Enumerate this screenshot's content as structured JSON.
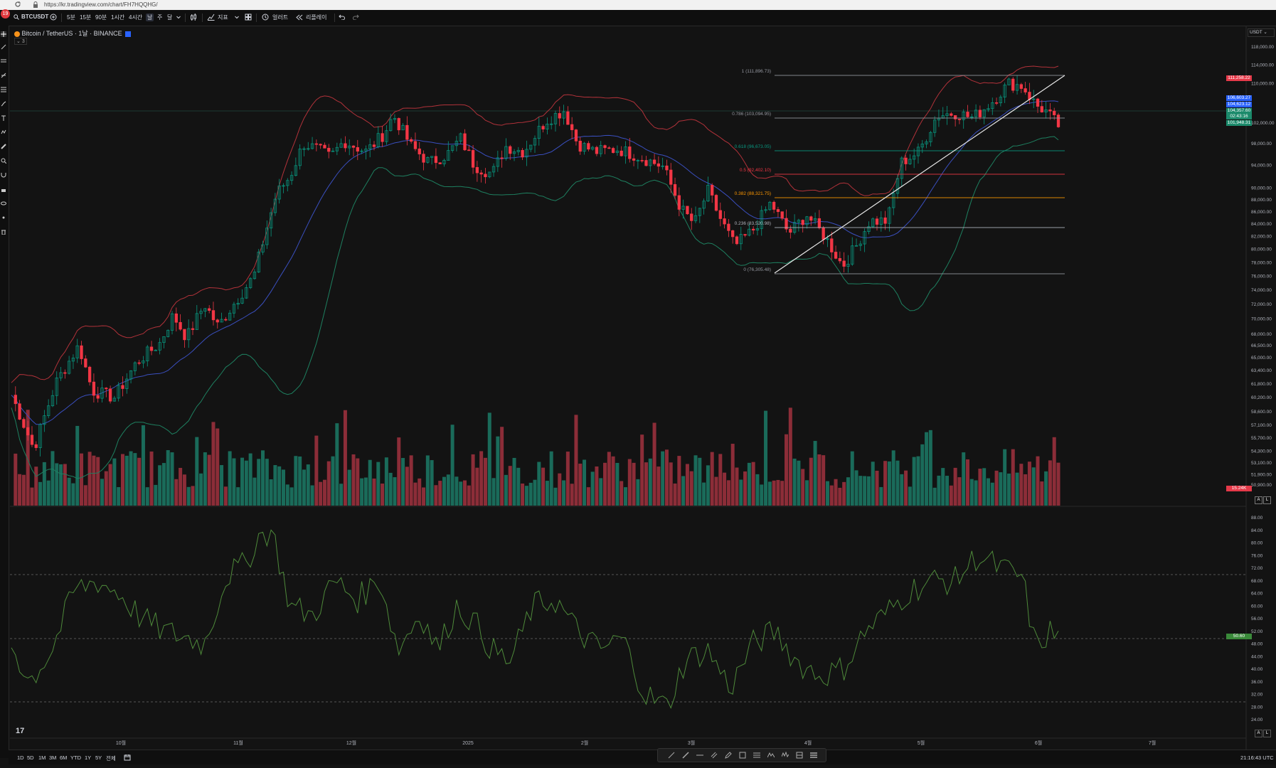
{
  "browser": {
    "url": "https://kr.tradingview.com/chart/FH7HQQHG/",
    "badge": "19"
  },
  "toolbar": {
    "symbol": "BTCUSDT",
    "intervals": [
      "5분",
      "15분",
      "90분",
      "1시간",
      "4시간",
      "날",
      "주",
      "달"
    ],
    "active_interval": "날",
    "indicators_label": "지표",
    "alert_label": "얼러트",
    "replay_label": "리플레이"
  },
  "legend": {
    "title": "Bitcoin / TetherUS · 1날 · BINANCE",
    "collapsed_count": "3"
  },
  "price_axis": {
    "currency": "USDT",
    "ticks": [
      "118,000.00",
      "114,000.00",
      "110,000.00",
      "102,000.00",
      "98,000.00",
      "94,000.00",
      "90,000.00",
      "88,000.00",
      "86,000.00",
      "84,000.00",
      "82,000.00",
      "80,000.00",
      "78,000.00",
      "76,000.00",
      "74,000.00",
      "72,000.00",
      "70,000.00",
      "68,000.00",
      "66,500.00",
      "65,000.00",
      "63,400.00",
      "61,800.00",
      "60,200.00",
      "58,600.00",
      "57,100.00",
      "55,700.00",
      "54,300.00",
      "53,100.00",
      "51,900.00",
      "50,900.00"
    ],
    "tags": [
      {
        "label": "111,258.22",
        "color": "#e53949"
      },
      {
        "label": "106,603.27",
        "color": "#2962ff"
      },
      {
        "label": "104,623.12",
        "color": "#2962ff"
      },
      {
        "label": "104,357.60",
        "color": "#1b8a6b"
      },
      {
        "label": "02:43:16",
        "color": "#1b8a6b"
      },
      {
        "label": "101,948.31",
        "color": "#1b8a6b"
      },
      {
        "label": "15.24K",
        "color": "#e53949"
      }
    ]
  },
  "rsi_axis": {
    "ticks": [
      "88.00",
      "84.00",
      "80.00",
      "76.00",
      "72.00",
      "68.00",
      "64.00",
      "60.00",
      "56.00",
      "52.00",
      "48.00",
      "44.00",
      "40.00",
      "36.00",
      "32.00",
      "28.00",
      "24.00"
    ],
    "tag": "50.60"
  },
  "fib_levels": [
    {
      "label": "1 (111,896.73)",
      "color": "#9598a1"
    },
    {
      "label": "0.786 (103,094.95)",
      "color": "#9598a1"
    },
    {
      "label": "0.618 (96,673.05)",
      "color": "#089981"
    },
    {
      "label": "0.5 (92,402.10)",
      "color": "#f23645"
    },
    {
      "label": "0.382 (88,321.75)",
      "color": "#ff9800"
    },
    {
      "label": "0.236 (83,520.98)",
      "color": "#b2b5be"
    },
    {
      "label": "0 (76,305.48)",
      "color": "#9598a1"
    }
  ],
  "time_axis": [
    "10월",
    "11월",
    "12월",
    "2025",
    "2월",
    "3월",
    "4월",
    "5월",
    "6월",
    "7월"
  ],
  "ranges": [
    "1D",
    "5D",
    "1M",
    "3M",
    "6M",
    "YTD",
    "1Y",
    "5Y",
    "전체"
  ],
  "clock": "21:16:43 UTC",
  "scale_buttons": [
    "A",
    "L"
  ],
  "logo": "17",
  "colors": {
    "up": "#089981",
    "down": "#f23645",
    "bb_upper": "#b2323a",
    "bb_lower": "#1e8060",
    "ma": "#3a4fbf",
    "rsi": "#4e8a3a"
  }
}
